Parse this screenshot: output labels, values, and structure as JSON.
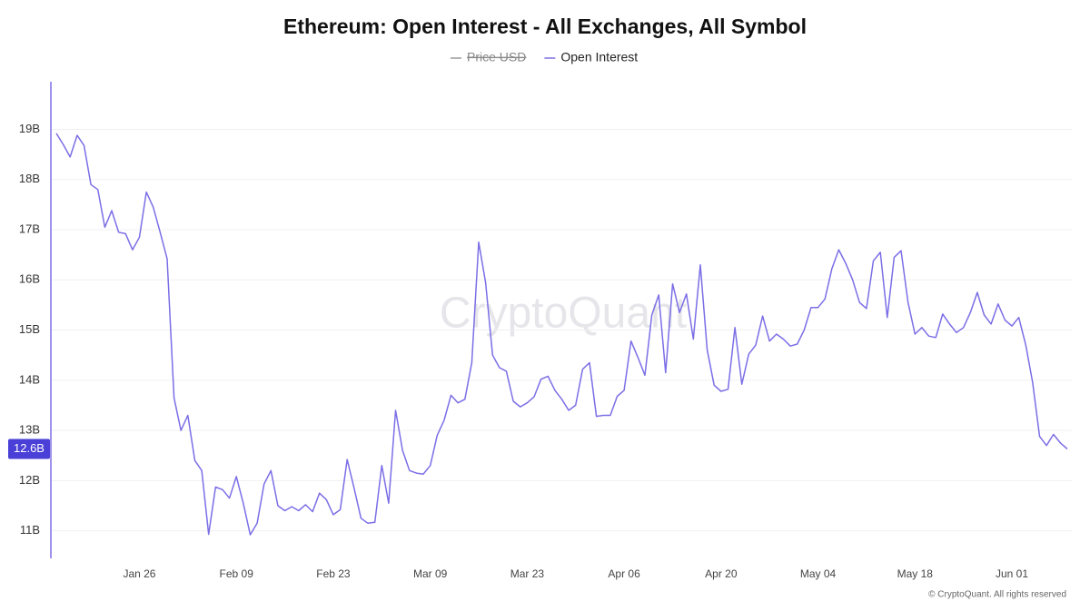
{
  "chart_data": {
    "type": "line",
    "title": "Ethereum: Open Interest - All Exchanges, All Symbol",
    "watermark": "CryptoQuant",
    "footer": "© CryptoQuant. All rights reserved",
    "categories": [
      null,
      null,
      null,
      null,
      null,
      null,
      null,
      null,
      null,
      null,
      null,
      null,
      "Jan 26",
      null,
      null,
      null,
      null,
      null,
      null,
      null,
      null,
      null,
      null,
      null,
      null,
      null,
      "Feb 09",
      null,
      null,
      null,
      null,
      null,
      null,
      null,
      null,
      null,
      null,
      null,
      null,
      null,
      "Feb 23",
      null,
      null,
      null,
      null,
      null,
      null,
      null,
      null,
      null,
      null,
      null,
      null,
      null,
      "Mar 09",
      null,
      null,
      null,
      null,
      null,
      null,
      null,
      null,
      null,
      null,
      null,
      null,
      null,
      "Mar 23",
      null,
      null,
      null,
      null,
      null,
      null,
      null,
      null,
      null,
      null,
      null,
      null,
      null,
      "Apr 06",
      null,
      null,
      null,
      null,
      null,
      null,
      null,
      null,
      null,
      null,
      null,
      null,
      null,
      "Apr 20",
      null,
      null,
      null,
      null,
      null,
      null,
      null,
      null,
      null,
      null,
      null,
      null,
      null,
      "May 04",
      null,
      null,
      null,
      null,
      null,
      null,
      null,
      null,
      null,
      null,
      null,
      null,
      null,
      "May 18",
      null,
      null,
      null,
      null,
      null,
      null,
      null,
      null,
      null,
      null,
      null,
      null,
      null,
      "Jun 01",
      null,
      null,
      null,
      null,
      null,
      null,
      null,
      null
    ],
    "series": [
      {
        "name": "Price USD",
        "color": "#9a9a9a",
        "hidden": true
      },
      {
        "name": "Open Interest",
        "color": "#7b6ee6",
        "last_label": "12.6B",
        "values": [
          18.92,
          18.7,
          18.45,
          18.88,
          18.68,
          17.9,
          17.8,
          17.05,
          17.38,
          16.95,
          16.92,
          16.6,
          16.85,
          17.75,
          17.45,
          16.95,
          16.42,
          13.65,
          13.0,
          13.3,
          12.4,
          12.2,
          10.93,
          11.87,
          11.82,
          11.65,
          12.08,
          11.55,
          10.92,
          11.15,
          11.93,
          12.2,
          11.5,
          11.4,
          11.48,
          11.4,
          11.52,
          11.38,
          11.75,
          11.62,
          11.32,
          11.42,
          12.42,
          11.85,
          11.25,
          11.15,
          11.17,
          12.3,
          11.55,
          13.4,
          12.6,
          12.2,
          12.15,
          12.13,
          12.3,
          12.9,
          13.2,
          13.7,
          13.55,
          13.62,
          14.35,
          16.75,
          15.95,
          14.5,
          14.25,
          14.18,
          13.58,
          13.47,
          13.55,
          13.67,
          14.02,
          14.08,
          13.8,
          13.62,
          13.4,
          13.5,
          14.22,
          14.35,
          13.28,
          13.3,
          13.3,
          13.68,
          13.8,
          14.78,
          14.45,
          14.1,
          15.3,
          15.7,
          14.15,
          15.92,
          15.35,
          15.72,
          14.82,
          16.3,
          14.6,
          13.9,
          13.78,
          13.82,
          15.05,
          13.92,
          14.52,
          14.7,
          15.28,
          14.78,
          14.92,
          14.82,
          14.68,
          14.72,
          15.0,
          15.45,
          15.45,
          15.62,
          16.22,
          16.6,
          16.33,
          16.0,
          15.55,
          15.43,
          16.38,
          16.55,
          15.25,
          16.45,
          16.58,
          15.55,
          14.92,
          15.05,
          14.88,
          14.85,
          15.32,
          15.12,
          14.95,
          15.05,
          15.35,
          15.75,
          15.3,
          15.12,
          15.52,
          15.2,
          15.08,
          15.25,
          14.7,
          13.95,
          12.88,
          12.7,
          12.92,
          12.75,
          12.63
        ]
      }
    ],
    "ylim": [
      10.45,
      19.95
    ],
    "yticks": [
      {
        "value": 11,
        "label": "11B"
      },
      {
        "value": 12,
        "label": "12B"
      },
      {
        "value": 13,
        "label": "13B"
      },
      {
        "value": 14,
        "label": "14B"
      },
      {
        "value": 15,
        "label": "15B"
      },
      {
        "value": 16,
        "label": "16B"
      },
      {
        "value": 17,
        "label": "17B"
      },
      {
        "value": 18,
        "label": "18B"
      },
      {
        "value": 19,
        "label": "19B"
      }
    ],
    "grid": true,
    "legend": "top"
  }
}
